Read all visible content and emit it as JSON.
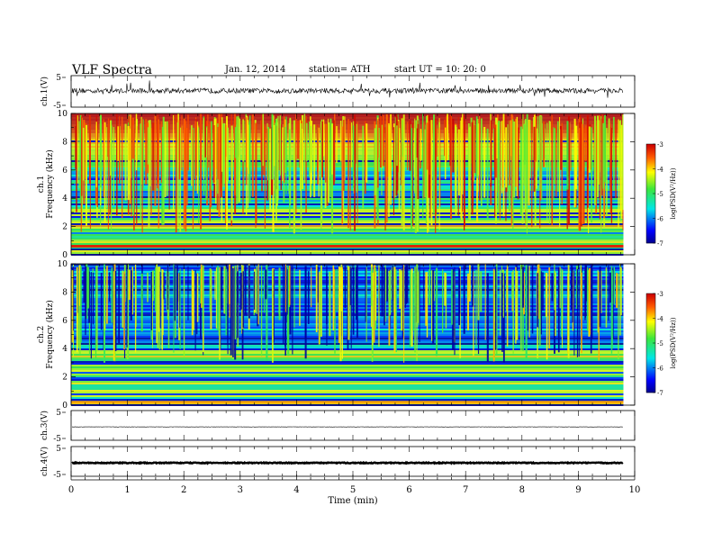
{
  "header": {
    "title": "VLF  Spectra",
    "date": "Jan. 12, 2014",
    "station": "station= ATH",
    "start": "start  UT  =    10: 20: 0"
  },
  "chart_data": {
    "type": "heatmap",
    "x_axis": {
      "label": "Time  (min)",
      "range": [
        0,
        10
      ],
      "ticks": [
        "0",
        "1",
        "2",
        "3",
        "4",
        "5",
        "6",
        "7",
        "8",
        "9",
        "10"
      ]
    },
    "data_end_min": 9.8,
    "panels": [
      {
        "id": "ch1_wave",
        "type": "line",
        "ylabel": "ch.1(V)",
        "ylim": [
          -5,
          5
        ],
        "ticks": [
          "5",
          "-5"
        ],
        "baseline": 0.2,
        "noise_amplitude": 0.8,
        "spike_amplitude": 3
      },
      {
        "id": "ch1_spec",
        "type": "heatmap",
        "ylabel": "ch.1\nFrequency (kHz)",
        "ylim": [
          0,
          10
        ],
        "ticks": [
          "0",
          "2",
          "4",
          "6",
          "8",
          "10"
        ],
        "colorbar": {
          "label": "log(PSD(V²/Hz))",
          "range": [
            -7,
            -3
          ],
          "ticks": [
            "-3",
            "-4",
            "-5",
            "-6",
            "-7"
          ]
        }
      },
      {
        "id": "ch2_spec",
        "type": "heatmap",
        "ylabel": "ch.2\nFrequency (kHz)",
        "ylim": [
          0,
          10
        ],
        "ticks": [
          "0",
          "2",
          "4",
          "6",
          "8",
          "10"
        ],
        "colorbar": {
          "label": "log(PSD(V²/Hz))",
          "range": [
            -7,
            -3
          ],
          "ticks": [
            "-3",
            "-4",
            "-5",
            "-6",
            "-7"
          ]
        }
      },
      {
        "id": "ch3_wave",
        "type": "line",
        "ylabel": "ch.3(V)",
        "ylim": [
          -5,
          5
        ],
        "ticks": [
          "5",
          "-5"
        ],
        "baseline": -0.5,
        "noise_amplitude": 0.05,
        "spike_amplitude": 0
      },
      {
        "id": "ch4_wave",
        "type": "line",
        "ylabel": "ch.4(V)",
        "ylim": [
          -5,
          5
        ],
        "ticks": [
          "5",
          "-5"
        ],
        "baseline": -0.5,
        "noise_amplitude": 0.15,
        "spike_amplitude": 0
      }
    ]
  }
}
